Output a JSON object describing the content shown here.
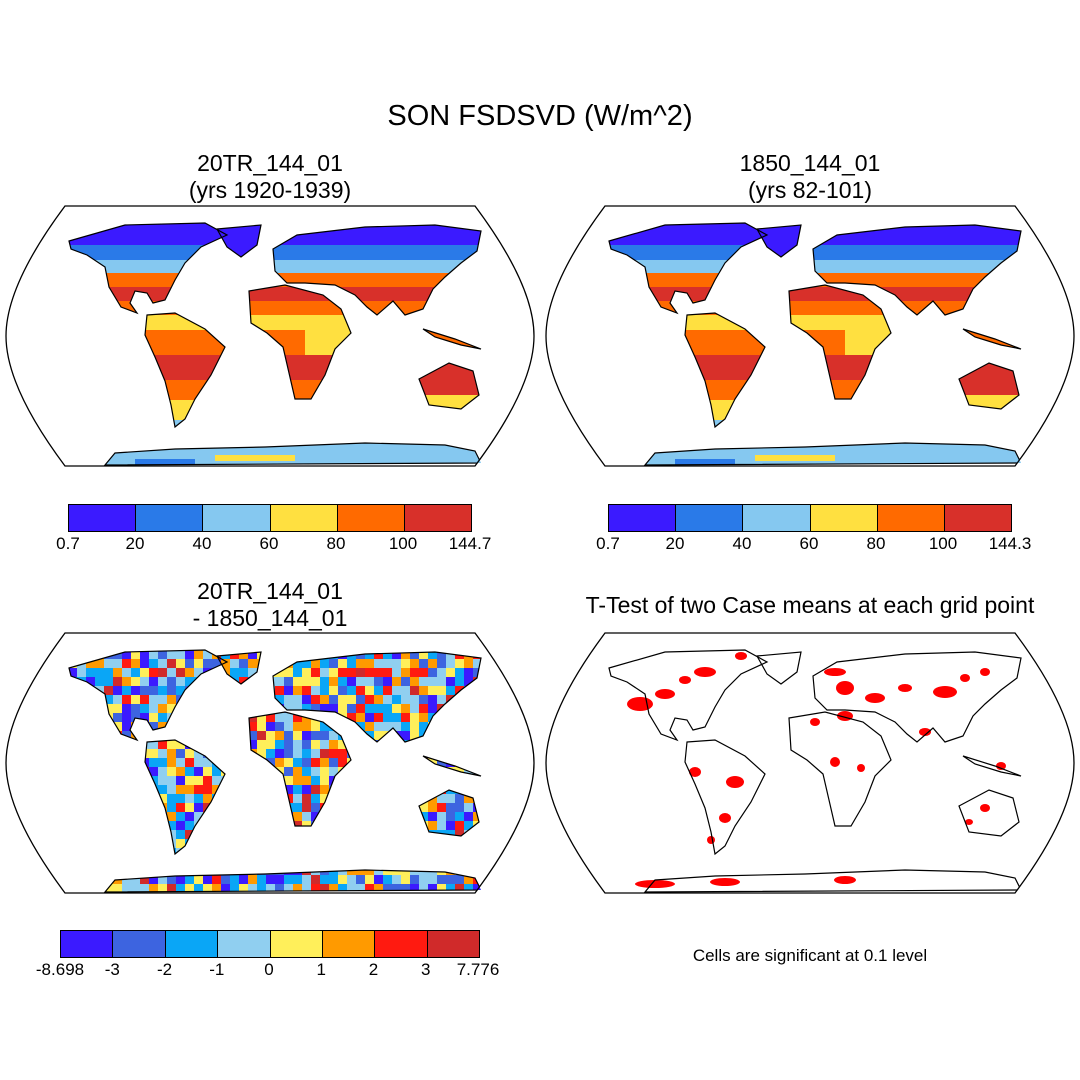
{
  "title": "SON FSDSVD (W/m^2)",
  "panels": [
    {
      "title_line1": "20TR_144_01",
      "title_line2": "(yrs 1920-1939)",
      "colorbar": {
        "colors": [
          "#3b1aff",
          "#2a7ae8",
          "#85c8f0",
          "#ffe040",
          "#ff6a00",
          "#d8302a"
        ],
        "ticks": [
          "0.7",
          "20",
          "40",
          "60",
          "80",
          "100",
          "144.7"
        ]
      }
    },
    {
      "title_line1": "1850_144_01",
      "title_line2": "(yrs 82-101)",
      "colorbar": {
        "colors": [
          "#3b1aff",
          "#2a7ae8",
          "#85c8f0",
          "#ffe040",
          "#ff6a00",
          "#d8302a"
        ],
        "ticks": [
          "0.7",
          "20",
          "40",
          "60",
          "80",
          "100",
          "144.3"
        ]
      }
    },
    {
      "title_line1": "20TR_144_01",
      "title_line2": "- 1850_144_01",
      "colorbar": {
        "colors": [
          "#3b1aff",
          "#3d64e0",
          "#0aa6f6",
          "#90cff0",
          "#ffef5a",
          "#ff9a00",
          "#ff1a10",
          "#d02a2a"
        ],
        "ticks": [
          "-8.698",
          "-3",
          "-2",
          "-1",
          "0",
          "1",
          "2",
          "3",
          "7.776"
        ]
      }
    },
    {
      "title": "T-Test of two Case means at each grid point",
      "note": "Cells are significant at 0.1 level",
      "significant_color": "#ff0000"
    }
  ]
}
